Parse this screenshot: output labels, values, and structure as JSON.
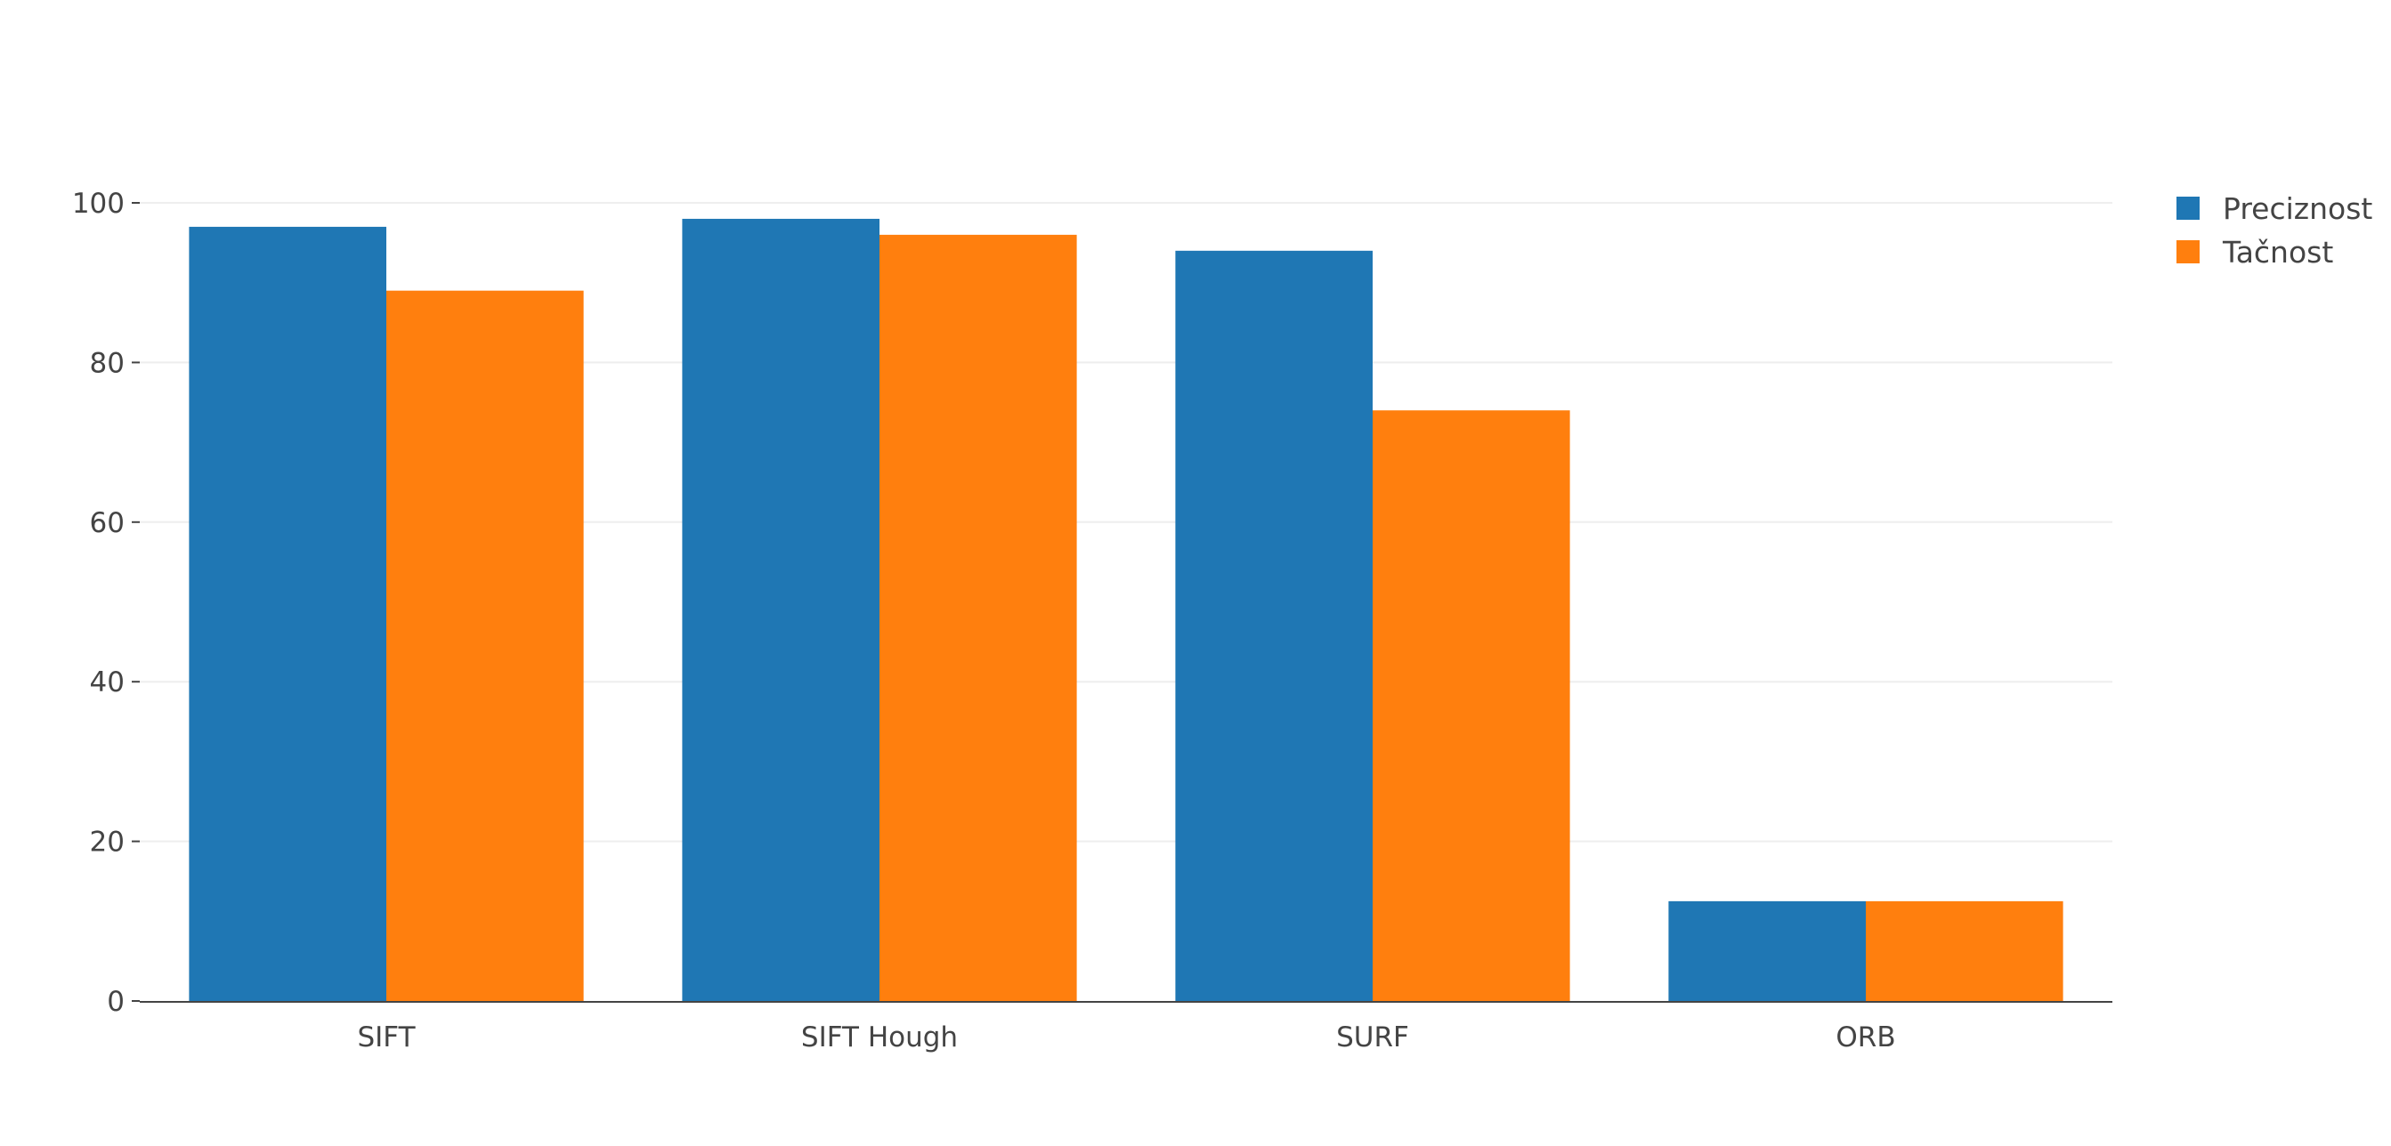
{
  "chart_data": {
    "type": "bar",
    "title": "",
    "xlabel": "",
    "ylabel": "",
    "categories": [
      "SIFT",
      "SIFT Hough",
      "SURF",
      "ORB"
    ],
    "series": [
      {
        "name": "Preciznost",
        "color": "#1f77b4",
        "values": [
          97,
          98,
          94,
          12.5
        ]
      },
      {
        "name": "Tačnost",
        "color": "#ff7f0e",
        "values": [
          89,
          96,
          74,
          12.5
        ]
      }
    ],
    "ylim": [
      0,
      100
    ],
    "y_ticks": [
      0,
      20,
      40,
      60,
      80,
      100
    ],
    "grid": true,
    "legend_position": "top-right"
  }
}
